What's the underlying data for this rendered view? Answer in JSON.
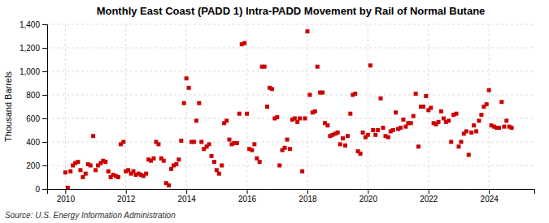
{
  "chart_data": {
    "type": "scatter",
    "title": "Monthly East Coast (PADD 1) Intra-PADD Movement by Rail of Normal Butane",
    "ylabel": "Thousand Barrels",
    "source": "Source: U.S. Energy Information Administration",
    "color": "#cc0000",
    "marker": "square",
    "grid": true,
    "xlim": [
      2009.4,
      2025.5
    ],
    "xticks": [
      2010,
      2012,
      2014,
      2016,
      2018,
      2020,
      2022,
      2024
    ],
    "ylim": [
      0,
      1400
    ],
    "yticks": [
      0,
      200,
      400,
      600,
      800,
      {
        "value": 1000,
        "label": "1,000"
      },
      {
        "value": 1200,
        "label": "1,200"
      },
      {
        "value": 1400,
        "label": "1,400"
      }
    ],
    "x": [
      2010.0,
      2010.08,
      2010.17,
      2010.25,
      2010.33,
      2010.42,
      2010.5,
      2010.58,
      2010.67,
      2010.75,
      2010.83,
      2010.92,
      2011.0,
      2011.08,
      2011.17,
      2011.25,
      2011.33,
      2011.42,
      2011.5,
      2011.58,
      2011.67,
      2011.75,
      2011.83,
      2011.92,
      2012.0,
      2012.08,
      2012.17,
      2012.25,
      2012.33,
      2012.42,
      2012.5,
      2012.58,
      2012.67,
      2012.75,
      2012.83,
      2012.92,
      2013.0,
      2013.08,
      2013.17,
      2013.25,
      2013.33,
      2013.42,
      2013.5,
      2013.58,
      2013.67,
      2013.75,
      2013.83,
      2013.92,
      2014.0,
      2014.08,
      2014.17,
      2014.25,
      2014.33,
      2014.42,
      2014.5,
      2014.58,
      2014.67,
      2014.75,
      2014.83,
      2014.92,
      2015.0,
      2015.08,
      2015.17,
      2015.25,
      2015.33,
      2015.42,
      2015.5,
      2015.58,
      2015.67,
      2015.75,
      2015.83,
      2015.92,
      2016.0,
      2016.08,
      2016.17,
      2016.25,
      2016.33,
      2016.42,
      2016.5,
      2016.58,
      2016.67,
      2016.75,
      2016.83,
      2016.92,
      2017.0,
      2017.08,
      2017.17,
      2017.25,
      2017.33,
      2017.42,
      2017.5,
      2017.58,
      2017.67,
      2017.75,
      2017.83,
      2017.92,
      2018.0,
      2018.08,
      2018.17,
      2018.25,
      2018.33,
      2018.42,
      2018.5,
      2018.58,
      2018.67,
      2018.75,
      2018.83,
      2018.92,
      2019.0,
      2019.08,
      2019.17,
      2019.25,
      2019.33,
      2019.42,
      2019.5,
      2019.58,
      2019.67,
      2019.75,
      2019.83,
      2019.92,
      2020.0,
      2020.08,
      2020.17,
      2020.25,
      2020.33,
      2020.42,
      2020.5,
      2020.58,
      2020.67,
      2020.75,
      2020.83,
      2020.92,
      2021.0,
      2021.08,
      2021.17,
      2021.25,
      2021.33,
      2021.42,
      2021.5,
      2021.58,
      2021.67,
      2021.75,
      2021.83,
      2021.92,
      2022.0,
      2022.08,
      2022.17,
      2022.25,
      2022.33,
      2022.42,
      2022.5,
      2022.58,
      2022.67,
      2022.75,
      2022.83,
      2022.92,
      2023.0,
      2023.08,
      2023.17,
      2023.25,
      2023.33,
      2023.42,
      2023.5,
      2023.58,
      2023.67,
      2023.75,
      2023.83,
      2023.92,
      2024.0,
      2024.08,
      2024.17,
      2024.25,
      2024.33,
      2024.42,
      2024.5,
      2024.58,
      2024.67,
      2024.75
    ],
    "values": [
      140,
      10,
      150,
      200,
      220,
      230,
      160,
      100,
      130,
      210,
      200,
      450,
      160,
      200,
      220,
      240,
      230,
      150,
      100,
      120,
      110,
      100,
      380,
      400,
      150,
      160,
      130,
      150,
      120,
      130,
      120,
      110,
      130,
      250,
      240,
      260,
      400,
      380,
      260,
      240,
      50,
      30,
      170,
      200,
      210,
      250,
      410,
      730,
      940,
      860,
      400,
      400,
      580,
      730,
      400,
      340,
      360,
      380,
      280,
      230,
      160,
      130,
      200,
      560,
      580,
      420,
      380,
      390,
      390,
      640,
      1230,
      1240,
      640,
      340,
      330,
      380,
      260,
      230,
      1040,
      1040,
      700,
      860,
      850,
      600,
      610,
      200,
      330,
      350,
      420,
      340,
      590,
      600,
      570,
      600,
      150,
      600,
      1340,
      800,
      650,
      660,
      1040,
      820,
      820,
      560,
      540,
      450,
      460,
      470,
      480,
      380,
      430,
      370,
      450,
      640,
      800,
      810,
      320,
      300,
      480,
      440,
      460,
      1050,
      500,
      460,
      500,
      770,
      520,
      450,
      440,
      490,
      500,
      650,
      510,
      520,
      590,
      530,
      560,
      560,
      620,
      810,
      360,
      700,
      700,
      790,
      670,
      690,
      560,
      550,
      570,
      660,
      600,
      570,
      580,
      400,
      630,
      640,
      360,
      400,
      470,
      490,
      290,
      480,
      540,
      490,
      580,
      630,
      700,
      720,
      840,
      540,
      530,
      520,
      520,
      740,
      530,
      580,
      530,
      520
    ]
  }
}
